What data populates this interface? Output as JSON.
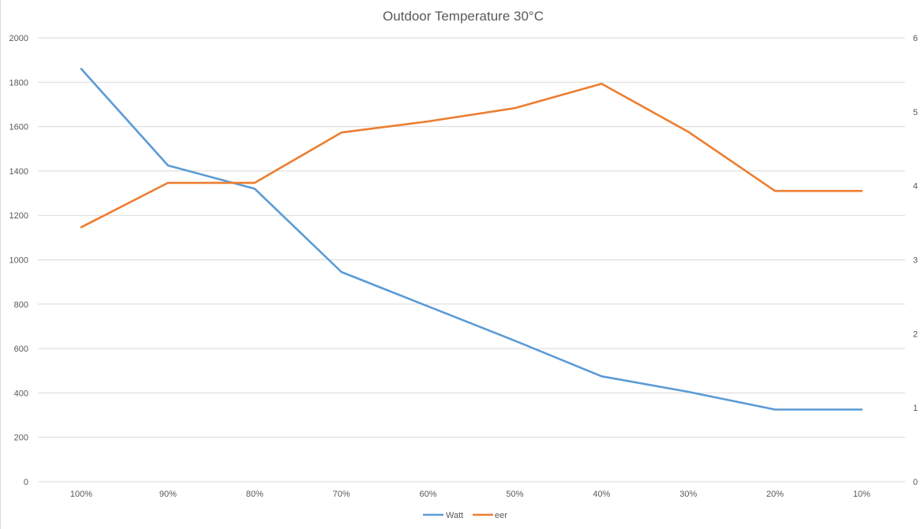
{
  "chart_data": {
    "type": "line",
    "title": "Outdoor Temperature 30°C",
    "categories": [
      "100%",
      "90%",
      "80%",
      "70%",
      "60%",
      "50%",
      "40%",
      "30%",
      "20%",
      "10%"
    ],
    "series": [
      {
        "name": "Watt",
        "axis": "left",
        "color": "#5b9bd5",
        "values": [
          1860,
          1425,
          1320,
          945,
          790,
          635,
          475,
          405,
          325,
          325
        ]
      },
      {
        "name": "eer",
        "axis": "right",
        "color": "#ed7d31",
        "values": [
          3.44,
          4.04,
          4.04,
          4.72,
          4.87,
          5.05,
          5.38,
          4.73,
          3.93,
          3.93
        ]
      }
    ],
    "left_axis": {
      "min": 0,
      "max": 2000,
      "ticks": [
        "0",
        "200",
        "400",
        "600",
        "800",
        "1000",
        "1200",
        "1400",
        "1600",
        "1800",
        "2000"
      ]
    },
    "right_axis": {
      "min": 0,
      "max": 6,
      "ticks": [
        "0",
        "1",
        "2",
        "3",
        "4",
        "5",
        "6"
      ]
    },
    "grid": true,
    "legend_position": "bottom"
  }
}
